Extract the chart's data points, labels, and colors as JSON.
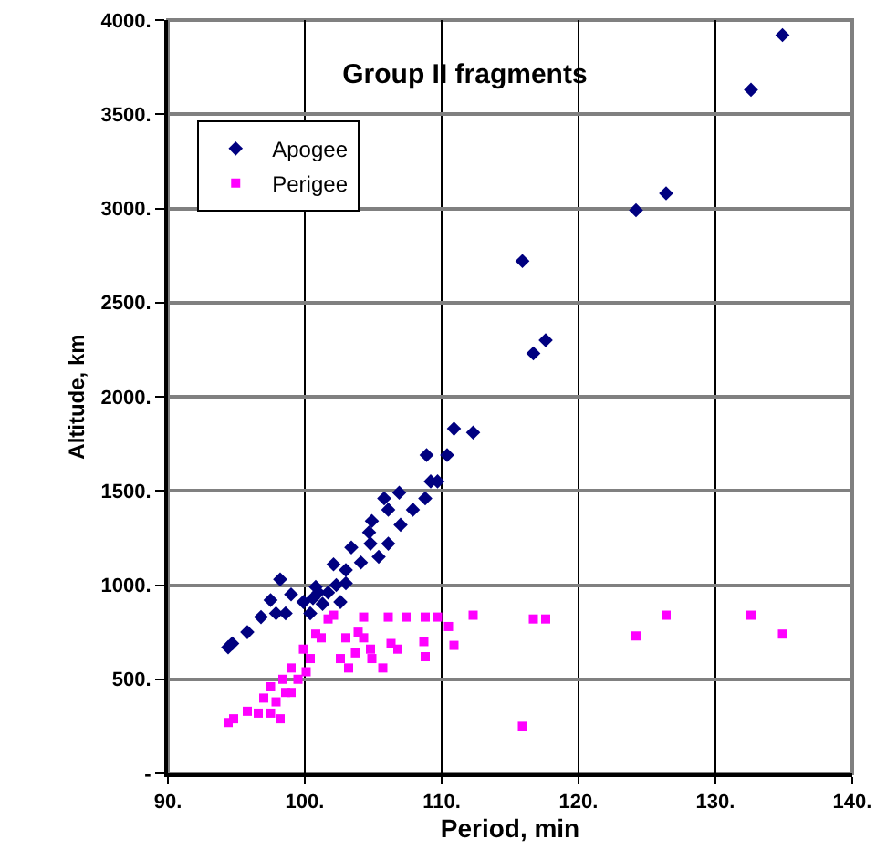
{
  "chart_data": {
    "type": "scatter",
    "title": "Group II fragments",
    "xlabel": "Period, min",
    "ylabel": "Altitude, km",
    "xlim": [
      90,
      140
    ],
    "xticks": [
      {
        "value": 90,
        "label": "90."
      },
      {
        "value": 100,
        "label": "100."
      },
      {
        "value": 110,
        "label": "110."
      },
      {
        "value": 120,
        "label": "120."
      },
      {
        "value": 130,
        "label": "130."
      },
      {
        "value": 140,
        "label": "140."
      }
    ],
    "ylim": [
      0,
      4000
    ],
    "yticks": [
      {
        "value": 0,
        "label": "-"
      },
      {
        "value": 500,
        "label": "500."
      },
      {
        "value": 1000,
        "label": "1000."
      },
      {
        "value": 1500,
        "label": "1500."
      },
      {
        "value": 2000,
        "label": "2000."
      },
      {
        "value": 2500,
        "label": "2500."
      },
      {
        "value": 3000,
        "label": "3000."
      },
      {
        "value": 3500,
        "label": "3500."
      },
      {
        "value": 4000,
        "label": "4000."
      }
    ],
    "grid": true,
    "legend": "top left",
    "series": [
      {
        "name": "Apogee",
        "color": "#000080",
        "marker": "diamond",
        "x": [
          94.4,
          94.7,
          95.8,
          96.8,
          97.5,
          97.9,
          98.2,
          98.6,
          99.0,
          99.9,
          100.4,
          100.8,
          100.6,
          101.0,
          101.3,
          101.7,
          102.1,
          102.6,
          102.3,
          103.0,
          103.0,
          103.4,
          104.1,
          104.7,
          104.8,
          104.9,
          105.4,
          105.8,
          106.1,
          106.1,
          106.9,
          107.0,
          107.9,
          108.8,
          108.9,
          109.2,
          109.7,
          110.4,
          110.9,
          112.3,
          115.9,
          116.7,
          117.6,
          124.2,
          126.4,
          132.6,
          134.9
        ],
        "values": [
          670,
          690,
          750,
          830,
          920,
          850,
          1030,
          850,
          950,
          910,
          850,
          990,
          930,
          960,
          900,
          960,
          1110,
          910,
          1000,
          1010,
          1080,
          1200,
          1120,
          1280,
          1220,
          1340,
          1150,
          1460,
          1400,
          1220,
          1490,
          1320,
          1400,
          1460,
          1690,
          1550,
          1550,
          1690,
          1830,
          1810,
          2720,
          2230,
          2300,
          2990,
          3080,
          3630,
          3920
        ]
      },
      {
        "name": "Perigee",
        "color": "#ff00ff",
        "marker": "square",
        "x": [
          94.4,
          94.8,
          95.8,
          96.6,
          97.0,
          97.5,
          97.5,
          97.9,
          98.2,
          98.4,
          98.6,
          99.0,
          99.0,
          99.5,
          99.9,
          100.1,
          100.4,
          100.8,
          101.2,
          101.7,
          102.1,
          102.6,
          103.0,
          103.2,
          103.7,
          103.9,
          104.3,
          104.3,
          104.8,
          104.9,
          105.7,
          106.1,
          106.3,
          106.8,
          107.4,
          108.7,
          108.8,
          108.8,
          109.7,
          110.5,
          110.9,
          112.3,
          115.9,
          116.7,
          117.6,
          124.2,
          126.4,
          132.6,
          134.9
        ],
        "values": [
          270,
          290,
          330,
          320,
          400,
          320,
          460,
          380,
          290,
          500,
          430,
          430,
          560,
          500,
          660,
          540,
          610,
          740,
          720,
          820,
          840,
          610,
          720,
          560,
          640,
          750,
          720,
          830,
          660,
          610,
          560,
          830,
          690,
          660,
          830,
          700,
          620,
          830,
          830,
          780,
          680,
          840,
          250,
          820,
          820,
          730,
          840,
          840,
          740
        ]
      }
    ]
  }
}
